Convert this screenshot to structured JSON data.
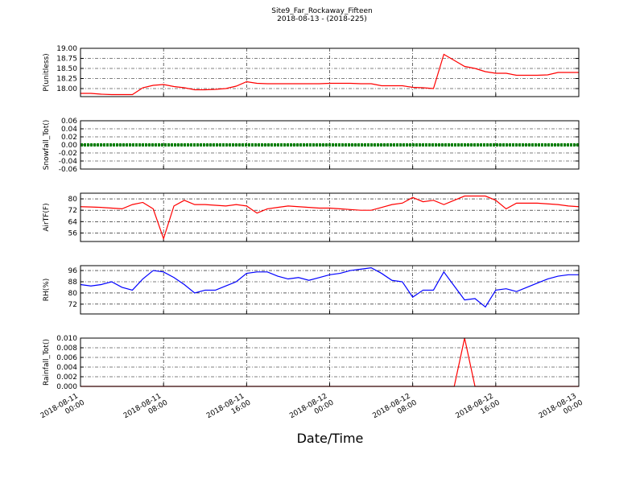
{
  "chart_data": [
    {
      "type": "line",
      "title": "Site9_Far_Rockaway_Fifteen",
      "subtitle": "2018-08-13 - (2018-225)",
      "ylabel": "P(unitless)",
      "color": "#ff0000",
      "grid": true,
      "x": [
        "2018-08-11 00:00",
        "2018-08-11 01:00",
        "2018-08-11 02:00",
        "2018-08-11 03:00",
        "2018-08-11 04:00",
        "2018-08-11 05:00",
        "2018-08-11 06:00",
        "2018-08-11 07:00",
        "2018-08-11 08:00",
        "2018-08-11 09:00",
        "2018-08-11 10:00",
        "2018-08-11 11:00",
        "2018-08-11 12:00",
        "2018-08-11 13:00",
        "2018-08-11 14:00",
        "2018-08-11 15:00",
        "2018-08-11 16:00",
        "2018-08-11 17:00",
        "2018-08-11 18:00",
        "2018-08-11 19:00",
        "2018-08-11 20:00",
        "2018-08-11 21:00",
        "2018-08-11 22:00",
        "2018-08-11 23:00",
        "2018-08-12 00:00",
        "2018-08-12 01:00",
        "2018-08-12 02:00",
        "2018-08-12 03:00",
        "2018-08-12 04:00",
        "2018-08-12 05:00",
        "2018-08-12 06:00",
        "2018-08-12 07:00",
        "2018-08-12 08:00",
        "2018-08-12 09:00",
        "2018-08-12 10:00",
        "2018-08-12 11:00",
        "2018-08-12 12:00",
        "2018-08-12 13:00",
        "2018-08-12 14:00",
        "2018-08-12 15:00",
        "2018-08-12 16:00",
        "2018-08-12 17:00",
        "2018-08-12 18:00",
        "2018-08-12 19:00",
        "2018-08-12 20:00",
        "2018-08-12 21:00",
        "2018-08-12 22:00",
        "2018-08-12 23:00",
        "2018-08-13 00:00"
      ],
      "values": [
        17.88,
        17.88,
        17.86,
        17.85,
        17.85,
        17.85,
        18.02,
        18.08,
        18.1,
        18.05,
        18.02,
        17.97,
        17.97,
        17.98,
        18.0,
        18.06,
        18.17,
        18.13,
        18.12,
        18.12,
        18.12,
        18.12,
        18.12,
        18.12,
        18.13,
        18.13,
        18.13,
        18.12,
        18.12,
        18.07,
        18.07,
        18.07,
        18.03,
        18.02,
        18.0,
        18.85,
        18.7,
        18.55,
        18.5,
        18.42,
        18.38,
        18.38,
        18.33,
        18.33,
        18.33,
        18.34,
        18.4,
        18.4,
        18.4
      ],
      "xlim": [
        "2018-08-11 00:00",
        "2018-08-13 00:00"
      ],
      "xticks": [
        "2018-08-11 00:00",
        "2018-08-11 08:00",
        "2018-08-11 16:00",
        "2018-08-12 00:00",
        "2018-08-12 08:00",
        "2018-08-12 16:00",
        "2018-08-13 00:00"
      ],
      "ylim": [
        17.8,
        19.0
      ],
      "yticks": [
        {
          "value": 18,
          "label": "18.00"
        },
        {
          "value": 18.25,
          "label": "18.25"
        },
        {
          "value": 18.5,
          "label": "18.50"
        },
        {
          "value": 18.75,
          "label": "18.75"
        },
        {
          "value": 19,
          "label": "19.00"
        }
      ]
    },
    {
      "type": "line",
      "ylabel": "Snowfall_Tot()",
      "color": "#008000",
      "grid": true,
      "x": [
        "2018-08-11 00:00",
        "2018-08-11 01:00",
        "2018-08-11 02:00",
        "2018-08-11 03:00",
        "2018-08-11 04:00",
        "2018-08-11 05:00",
        "2018-08-11 06:00",
        "2018-08-11 07:00",
        "2018-08-11 08:00",
        "2018-08-11 09:00",
        "2018-08-11 10:00",
        "2018-08-11 11:00",
        "2018-08-11 12:00",
        "2018-08-11 13:00",
        "2018-08-11 14:00",
        "2018-08-11 15:00",
        "2018-08-11 16:00",
        "2018-08-11 17:00",
        "2018-08-11 18:00",
        "2018-08-11 19:00",
        "2018-08-11 20:00",
        "2018-08-11 21:00",
        "2018-08-11 22:00",
        "2018-08-11 23:00",
        "2018-08-12 00:00",
        "2018-08-12 01:00",
        "2018-08-12 02:00",
        "2018-08-12 03:00",
        "2018-08-12 04:00",
        "2018-08-12 05:00",
        "2018-08-12 06:00",
        "2018-08-12 07:00",
        "2018-08-12 08:00",
        "2018-08-12 09:00",
        "2018-08-12 10:00",
        "2018-08-12 11:00",
        "2018-08-12 12:00",
        "2018-08-12 13:00",
        "2018-08-12 14:00",
        "2018-08-12 15:00",
        "2018-08-12 16:00",
        "2018-08-12 17:00",
        "2018-08-12 18:00",
        "2018-08-12 19:00",
        "2018-08-12 20:00",
        "2018-08-12 21:00",
        "2018-08-12 22:00",
        "2018-08-12 23:00",
        "2018-08-13 00:00"
      ],
      "values": [
        0,
        0,
        0,
        0,
        0,
        0,
        0,
        0,
        0,
        0,
        0,
        0,
        0,
        0,
        0,
        0,
        0,
        0,
        0,
        0,
        0,
        0,
        0,
        0,
        0,
        0,
        0,
        0,
        0,
        0,
        0,
        0,
        0,
        0,
        0,
        0,
        0,
        0,
        0,
        0,
        0,
        0,
        0,
        0,
        0,
        0,
        0,
        0,
        0
      ],
      "xlim": [
        "2018-08-11 00:00",
        "2018-08-13 00:00"
      ],
      "xticks": [
        "2018-08-11 00:00",
        "2018-08-11 08:00",
        "2018-08-11 16:00",
        "2018-08-12 00:00",
        "2018-08-12 08:00",
        "2018-08-12 16:00",
        "2018-08-13 00:00"
      ],
      "ylim": [
        -0.06,
        0.06
      ],
      "yticks": [
        {
          "value": -0.06,
          "label": "-0.06"
        },
        {
          "value": -0.04,
          "label": "-0.04"
        },
        {
          "value": -0.02,
          "label": "-0.02"
        },
        {
          "value": 0,
          "label": "0.00"
        },
        {
          "value": 0.02,
          "label": "0.02"
        },
        {
          "value": 0.04,
          "label": "0.04"
        },
        {
          "value": 0.06,
          "label": "0.06"
        }
      ]
    },
    {
      "type": "line",
      "ylabel": "AirTF(F)",
      "color": "#ff0000",
      "grid": true,
      "x": [
        "2018-08-11 00:00",
        "2018-08-11 01:00",
        "2018-08-11 02:00",
        "2018-08-11 03:00",
        "2018-08-11 04:00",
        "2018-08-11 05:00",
        "2018-08-11 06:00",
        "2018-08-11 07:00",
        "2018-08-11 08:00",
        "2018-08-11 09:00",
        "2018-08-11 10:00",
        "2018-08-11 11:00",
        "2018-08-11 12:00",
        "2018-08-11 13:00",
        "2018-08-11 14:00",
        "2018-08-11 15:00",
        "2018-08-11 16:00",
        "2018-08-11 17:00",
        "2018-08-11 18:00",
        "2018-08-11 19:00",
        "2018-08-11 20:00",
        "2018-08-11 21:00",
        "2018-08-11 22:00",
        "2018-08-11 23:00",
        "2018-08-12 00:00",
        "2018-08-12 01:00",
        "2018-08-12 02:00",
        "2018-08-12 03:00",
        "2018-08-12 04:00",
        "2018-08-12 05:00",
        "2018-08-12 06:00",
        "2018-08-12 07:00",
        "2018-08-12 08:00",
        "2018-08-12 09:00",
        "2018-08-12 10:00",
        "2018-08-12 11:00",
        "2018-08-12 12:00",
        "2018-08-12 13:00",
        "2018-08-12 14:00",
        "2018-08-12 15:00",
        "2018-08-12 16:00",
        "2018-08-12 17:00",
        "2018-08-12 18:00",
        "2018-08-12 19:00",
        "2018-08-12 20:00",
        "2018-08-12 21:00",
        "2018-08-12 22:00",
        "2018-08-12 23:00",
        "2018-08-13 00:00"
      ],
      "values": [
        74.5,
        74.3,
        74,
        73.5,
        73,
        76,
        77.5,
        73,
        52,
        75,
        79,
        76,
        76,
        75.5,
        75,
        76,
        75,
        70,
        73,
        74,
        75,
        74.5,
        74,
        73.5,
        73.5,
        73,
        72.5,
        72,
        72,
        74,
        76,
        77,
        81,
        78,
        79,
        76,
        79,
        82,
        82,
        82,
        79,
        73,
        77,
        77,
        77,
        76.5,
        76,
        75,
        74.5
      ],
      "xlim": [
        "2018-08-11 00:00",
        "2018-08-13 00:00"
      ],
      "xticks": [
        "2018-08-11 00:00",
        "2018-08-11 08:00",
        "2018-08-11 16:00",
        "2018-08-12 00:00",
        "2018-08-12 08:00",
        "2018-08-12 16:00",
        "2018-08-13 00:00"
      ],
      "ylim": [
        50,
        84
      ],
      "yticks": [
        56,
        64,
        72,
        80
      ]
    },
    {
      "type": "line",
      "ylabel": "RH(%)",
      "color": "#0000ff",
      "grid": true,
      "x": [
        "2018-08-11 00:00",
        "2018-08-11 01:00",
        "2018-08-11 02:00",
        "2018-08-11 03:00",
        "2018-08-11 04:00",
        "2018-08-11 05:00",
        "2018-08-11 06:00",
        "2018-08-11 07:00",
        "2018-08-11 08:00",
        "2018-08-11 09:00",
        "2018-08-11 10:00",
        "2018-08-11 11:00",
        "2018-08-11 12:00",
        "2018-08-11 13:00",
        "2018-08-11 14:00",
        "2018-08-11 15:00",
        "2018-08-11 16:00",
        "2018-08-11 17:00",
        "2018-08-11 18:00",
        "2018-08-11 19:00",
        "2018-08-11 20:00",
        "2018-08-11 21:00",
        "2018-08-11 22:00",
        "2018-08-11 23:00",
        "2018-08-12 00:00",
        "2018-08-12 01:00",
        "2018-08-12 02:00",
        "2018-08-12 03:00",
        "2018-08-12 04:00",
        "2018-08-12 05:00",
        "2018-08-12 06:00",
        "2018-08-12 07:00",
        "2018-08-12 08:00",
        "2018-08-12 09:00",
        "2018-08-12 10:00",
        "2018-08-12 11:00",
        "2018-08-12 12:00",
        "2018-08-12 13:00",
        "2018-08-12 14:00",
        "2018-08-12 15:00",
        "2018-08-12 16:00",
        "2018-08-12 17:00",
        "2018-08-12 18:00",
        "2018-08-12 19:00",
        "2018-08-12 20:00",
        "2018-08-12 21:00",
        "2018-08-12 22:00",
        "2018-08-12 23:00",
        "2018-08-13 00:00"
      ],
      "values": [
        86,
        85,
        86,
        88,
        84,
        82,
        90,
        96,
        95,
        91,
        86,
        80,
        82,
        82,
        85,
        88,
        94,
        95,
        95,
        92,
        90,
        91,
        89,
        91,
        93,
        94,
        96,
        97,
        98,
        94,
        89,
        88,
        77,
        82,
        82,
        95,
        85,
        75,
        76,
        70,
        82,
        83,
        81,
        84,
        87,
        90,
        92,
        93,
        93
      ],
      "xlim": [
        "2018-08-11 00:00",
        "2018-08-13 00:00"
      ],
      "xticks": [
        "2018-08-11 00:00",
        "2018-08-11 08:00",
        "2018-08-11 16:00",
        "2018-08-12 00:00",
        "2018-08-12 08:00",
        "2018-08-12 16:00",
        "2018-08-13 00:00"
      ],
      "ylim": [
        65,
        99.5
      ],
      "yticks": [
        72,
        80,
        88,
        96
      ]
    },
    {
      "type": "line",
      "ylabel": "Rainfall_Tot()",
      "xlabel": "Date/Time",
      "color": "#ff0000",
      "grid": true,
      "x": [
        "2018-08-11 00:00",
        "2018-08-11 01:00",
        "2018-08-11 02:00",
        "2018-08-11 03:00",
        "2018-08-11 04:00",
        "2018-08-11 05:00",
        "2018-08-11 06:00",
        "2018-08-11 07:00",
        "2018-08-11 08:00",
        "2018-08-11 09:00",
        "2018-08-11 10:00",
        "2018-08-11 11:00",
        "2018-08-11 12:00",
        "2018-08-11 13:00",
        "2018-08-11 14:00",
        "2018-08-11 15:00",
        "2018-08-11 16:00",
        "2018-08-11 17:00",
        "2018-08-11 18:00",
        "2018-08-11 19:00",
        "2018-08-11 20:00",
        "2018-08-11 21:00",
        "2018-08-11 22:00",
        "2018-08-11 23:00",
        "2018-08-12 00:00",
        "2018-08-12 01:00",
        "2018-08-12 02:00",
        "2018-08-12 03:00",
        "2018-08-12 04:00",
        "2018-08-12 05:00",
        "2018-08-12 06:00",
        "2018-08-12 07:00",
        "2018-08-12 08:00",
        "2018-08-12 09:00",
        "2018-08-12 10:00",
        "2018-08-12 11:00",
        "2018-08-12 12:00",
        "2018-08-12 13:00",
        "2018-08-12 14:00",
        "2018-08-12 15:00",
        "2018-08-12 16:00",
        "2018-08-12 17:00",
        "2018-08-12 18:00",
        "2018-08-12 19:00",
        "2018-08-12 20:00",
        "2018-08-12 21:00",
        "2018-08-12 22:00",
        "2018-08-12 23:00",
        "2018-08-13 00:00"
      ],
      "values": [
        0,
        0,
        0,
        0,
        0,
        0,
        0,
        0,
        0,
        0,
        0,
        0,
        0,
        0,
        0,
        0,
        0,
        0,
        0,
        0,
        0,
        0,
        0,
        0,
        0,
        0,
        0,
        0,
        0,
        0,
        0,
        0,
        0,
        0,
        0,
        0,
        0,
        0.01,
        0,
        0,
        0,
        0,
        0,
        0,
        0,
        0,
        0,
        0,
        0
      ],
      "xlim": [
        "2018-08-11 00:00",
        "2018-08-13 00:00"
      ],
      "xticks": [
        "2018-08-11 00:00",
        "2018-08-11 08:00",
        "2018-08-11 16:00",
        "2018-08-12 00:00",
        "2018-08-12 08:00",
        "2018-08-12 16:00",
        "2018-08-13 00:00"
      ],
      "ylim": [
        0,
        0.01
      ],
      "yticks": [
        {
          "value": 0,
          "label": "0.000"
        },
        {
          "value": 0.002,
          "label": "0.002"
        },
        {
          "value": 0.004,
          "label": "0.004"
        },
        {
          "value": 0.006,
          "label": "0.006"
        },
        {
          "value": 0.008,
          "label": "0.008"
        },
        {
          "value": 0.01,
          "label": "0.010"
        }
      ]
    }
  ]
}
